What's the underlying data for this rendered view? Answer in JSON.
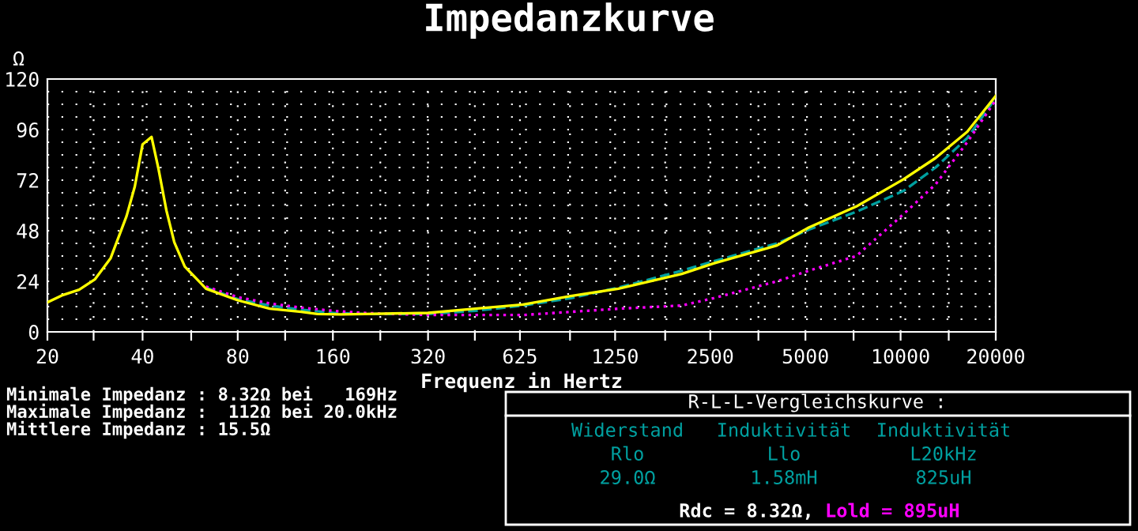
{
  "chart_data": {
    "type": "line",
    "title": "Impedanzkurve",
    "xlabel": "Frequenz in Hertz",
    "ylabel": "Ω",
    "log": "x",
    "xlim": [
      20,
      20000
    ],
    "ylim": [
      0,
      120
    ],
    "xticks": [
      20,
      {
        "value": 28,
        "label": null
      },
      40,
      {
        "value": 57,
        "label": null
      },
      80,
      {
        "value": 113,
        "label": null
      },
      160,
      {
        "value": 226,
        "label": null
      },
      320,
      {
        "value": 450,
        "label": null
      },
      625,
      {
        "value": 900,
        "label": null
      },
      1250,
      {
        "value": 1800,
        "label": null
      },
      2500,
      {
        "value": 3550,
        "label": null
      },
      5000,
      {
        "value": 7100,
        "label": null
      },
      10000,
      {
        "value": 14200,
        "label": null
      },
      20000
    ],
    "yticks": [
      0,
      {
        "value": 6,
        "label": null
      },
      {
        "value": 12,
        "label": null
      },
      {
        "value": 18,
        "label": null
      },
      24,
      {
        "value": 30,
        "label": null
      },
      {
        "value": 36,
        "label": null
      },
      {
        "value": 42,
        "label": null
      },
      48,
      {
        "value": 54,
        "label": null
      },
      {
        "value": 60,
        "label": null
      },
      {
        "value": 66,
        "label": null
      },
      72,
      {
        "value": 78,
        "label": null
      },
      {
        "value": 84,
        "label": null
      },
      {
        "value": 90,
        "label": null
      },
      96,
      {
        "value": 102,
        "label": null
      },
      {
        "value": 108,
        "label": null
      },
      {
        "value": 114,
        "label": null
      },
      120
    ],
    "grid": true,
    "marker": "none",
    "series": [
      {
        "color": "#ffff00",
        "line_style": "solid",
        "x": [
          20,
          22.4,
          25.2,
          28.3,
          31.7,
          35.6,
          37.8,
          40,
          42.7,
          44.9,
          47.6,
          50.4,
          54.4,
          63.5,
          80,
          101,
          127,
          143,
          169,
          202,
          320,
          452,
          640,
          905,
          1280,
          2032,
          2560,
          4064,
          5120,
          7241,
          10240,
          12900,
          16250,
          20000
        ],
        "values": [
          14,
          17.5,
          20,
          25,
          35,
          55,
          69,
          89,
          92.5,
          77.5,
          57.5,
          42.5,
          31,
          20.5,
          15,
          11,
          9.5,
          8.5,
          8.32,
          8.5,
          9,
          11,
          13,
          17,
          20.5,
          27.5,
          32.5,
          41,
          49.5,
          59.5,
          72.5,
          82.5,
          95,
          112
        ]
      },
      {
        "color": "#00a0a0",
        "line_style": "dashed",
        "x": [
          63.5,
          80,
          101,
          127,
          160,
          200,
          320,
          452,
          640,
          905,
          1280,
          2032,
          2560,
          4064,
          5120,
          7241,
          10240,
          12900,
          16250,
          20000
        ],
        "values": [
          21,
          15.5,
          12.5,
          10.5,
          9,
          8.5,
          8.5,
          10,
          12.5,
          16,
          21,
          29,
          33.5,
          42,
          48.5,
          57,
          67,
          78,
          92,
          111
        ]
      },
      {
        "name": "Lold = 895uH",
        "color": "#ff00ff",
        "line_style": "dotted",
        "x": [
          63.5,
          80,
          101,
          127,
          160,
          200,
          320,
          452,
          640,
          905,
          1280,
          2032,
          2560,
          4064,
          5120,
          7241,
          10240,
          12900,
          16250,
          20000
        ],
        "values": [
          21.5,
          16.5,
          13.5,
          11.5,
          10,
          9,
          8,
          8,
          8,
          9.5,
          11,
          12.5,
          16,
          24,
          29,
          36,
          56,
          70,
          90,
          110
        ]
      }
    ],
    "annotations": [
      "Minimale Impedanz : 8.32Ω bei   169Hz",
      "Maximale Impedanz :  112Ω bei 20.0kHz",
      "Mittlere Impedanz : 15.5Ω",
      "R-L-L-Vergleichskurve :",
      "Widerstand",
      "Induktivität",
      "Induktivität",
      "Rlo",
      "Llo",
      "L20kHz",
      "29.0Ω",
      "1.58mH",
      "825uH",
      "Rdc = 8.32Ω,"
    ]
  }
}
